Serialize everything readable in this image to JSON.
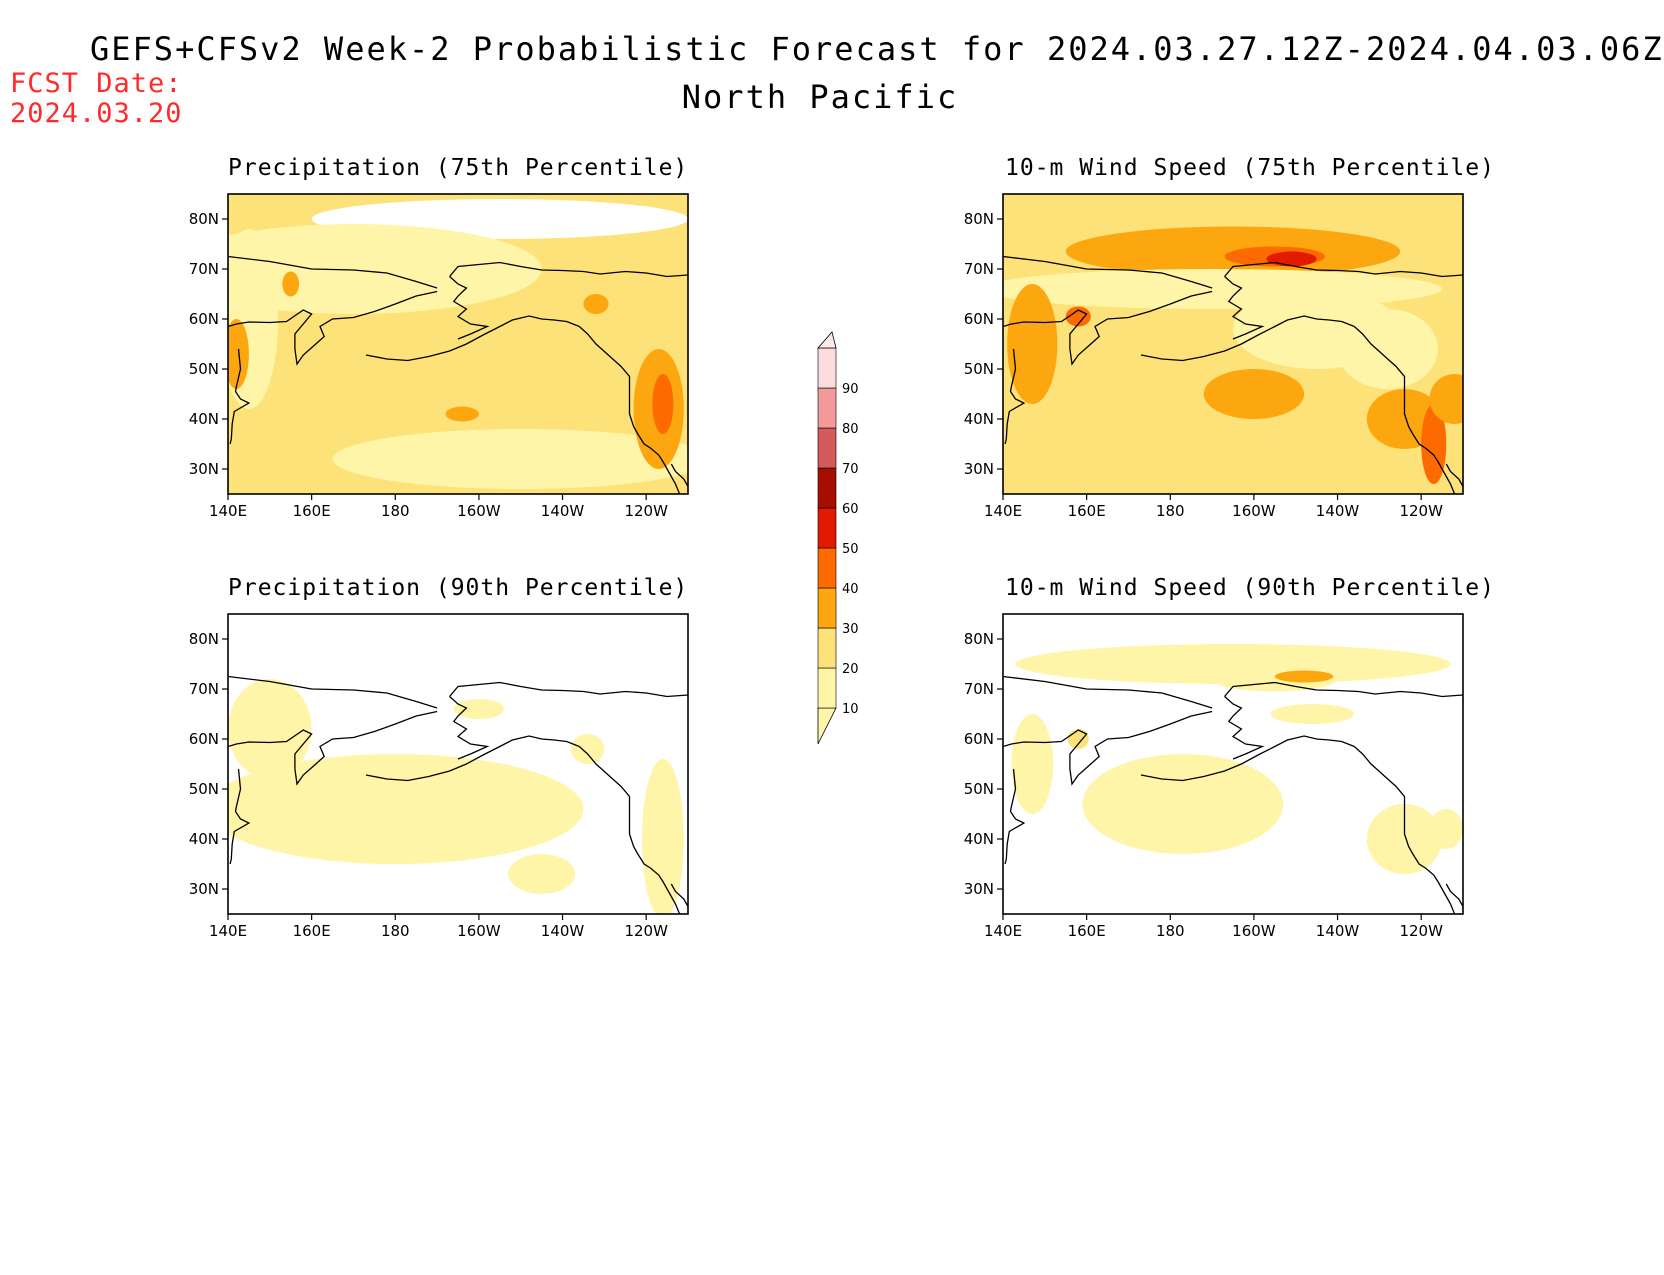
{
  "header": {
    "title": "GEFS+CFSv2 Week-2 Probabilistic Forecast for 2024.03.27.12Z-2024.04.03.06Z",
    "subtitle": "North Pacific",
    "fcst_label": "FCST Date:",
    "fcst_date": "2024.03.20"
  },
  "panels": [
    {
      "id": "precip75",
      "title": "Precipitation (75th Percentile)",
      "base_level": 20
    },
    {
      "id": "wind75",
      "title": "10-m Wind Speed (75th Percentile)",
      "base_level": 20
    },
    {
      "id": "precip90",
      "title": "Precipitation (90th Percentile)",
      "base_level": 0
    },
    {
      "id": "wind90",
      "title": "10-m Wind Speed (90th Percentile)",
      "base_level": 0
    }
  ],
  "axes": {
    "lon_ticks": [
      "140E",
      "160E",
      "180",
      "160W",
      "140W",
      "120W"
    ],
    "lat_ticks": [
      "80N",
      "70N",
      "60N",
      "50N",
      "40N",
      "30N"
    ]
  },
  "colorbar": {
    "levels": [
      "10",
      "20",
      "30",
      "40",
      "50",
      "60",
      "70",
      "80",
      "90"
    ],
    "colors": [
      "#fff5a8",
      "#fde27a",
      "#fca70f",
      "#fc6a00",
      "#e21b00",
      "#a60f00",
      "#d55a5a",
      "#f29a9a",
      "#fcdcdc"
    ]
  }
}
